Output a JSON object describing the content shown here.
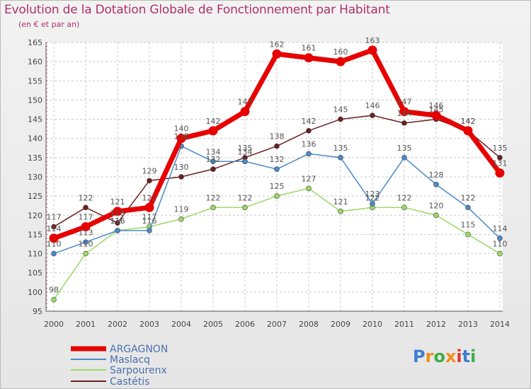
{
  "chart_data": {
    "type": "line",
    "title": "Evolution de la Dotation Globale de Fonctionnement par Habitant",
    "subtitle": "(en € et par an)",
    "xlabel": "",
    "ylabel": "",
    "ylim": [
      95,
      165
    ],
    "yticks": [
      95,
      100,
      105,
      110,
      115,
      120,
      125,
      130,
      135,
      140,
      145,
      150,
      155,
      160,
      165
    ],
    "categories": [
      "2000",
      "2001",
      "2002",
      "2003",
      "2004",
      "2005",
      "2006",
      "2007",
      "2008",
      "2009",
      "2010",
      "2011",
      "2012",
      "2013",
      "2014"
    ],
    "series": [
      {
        "name": "Castétis",
        "color": "#6b1f1f",
        "values": [
          117,
          122,
          118,
          129,
          130,
          132,
          135,
          138,
          142,
          145,
          146,
          144,
          145,
          142,
          135
        ]
      },
      {
        "name": "Sarpourenx",
        "color": "#99d966",
        "values": [
          98,
          110,
          116,
          117,
          119,
          122,
          122,
          125,
          127,
          121,
          122,
          122,
          120,
          115,
          110
        ]
      },
      {
        "name": "Maslacq",
        "color": "#4a8ac8",
        "values": [
          110,
          113,
          116,
          116,
          138,
          134,
          134,
          132,
          136,
          135,
          123,
          135,
          128,
          122,
          114
        ]
      },
      {
        "name": "ARGAGNON",
        "color": "#e60000",
        "values": [
          114,
          117,
          121,
          122,
          140,
          142,
          147,
          162,
          161,
          160,
          163,
          147,
          146,
          142,
          131
        ]
      }
    ],
    "legend_order": [
      "ARGAGNON",
      "Maslacq",
      "Sarpourenx",
      "Castétis"
    ],
    "grid": true,
    "legend_position": "bottom-left"
  },
  "brand": {
    "letters": [
      "P",
      "r",
      "o",
      "x",
      "i",
      "t",
      "i"
    ],
    "colors": [
      "#3f7ed1",
      "#f28c1b",
      "#3fae49",
      "#f28c1b",
      "#e5322d",
      "#3f7ed1",
      "#3fae49"
    ]
  }
}
